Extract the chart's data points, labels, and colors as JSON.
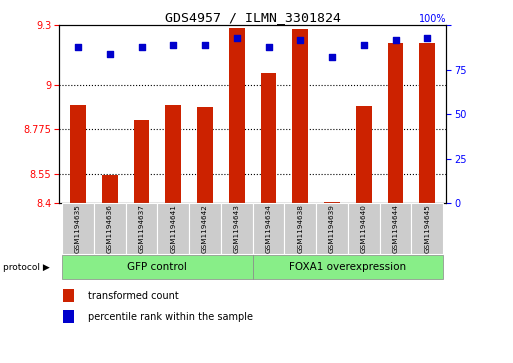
{
  "title": "GDS4957 / ILMN_3301824",
  "samples": [
    "GSM1194635",
    "GSM1194636",
    "GSM1194637",
    "GSM1194641",
    "GSM1194642",
    "GSM1194643",
    "GSM1194634",
    "GSM1194638",
    "GSM1194639",
    "GSM1194640",
    "GSM1194644",
    "GSM1194645"
  ],
  "bar_values": [
    8.895,
    8.545,
    8.82,
    8.895,
    8.885,
    9.285,
    9.06,
    9.28,
    8.405,
    8.89,
    9.21,
    9.21
  ],
  "percentile_values": [
    88,
    84,
    88,
    89,
    89,
    93,
    88,
    92,
    82,
    89,
    92,
    93
  ],
  "y_min": 8.4,
  "y_max": 9.3,
  "y_ticks_left": [
    8.4,
    8.55,
    8.775,
    9.0,
    9.3
  ],
  "y_ticks_left_labels": [
    "8.4",
    "8.55",
    "8.775",
    "9",
    "9.3"
  ],
  "y_ticks_right": [
    0,
    25,
    50,
    75,
    100
  ],
  "bar_color": "#cc2200",
  "dot_color": "#0000cc",
  "group1_label": "GFP control",
  "group2_label": "FOXA1 overexpression",
  "group1_count": 6,
  "group2_count": 6,
  "group_bg_color": "#88ee88",
  "sample_bg_color": "#cccccc",
  "legend_items": [
    "transformed count",
    "percentile rank within the sample"
  ],
  "bar_width": 0.5,
  "baseline": 8.4,
  "grid_lines": [
    8.55,
    8.775,
    9.0
  ]
}
